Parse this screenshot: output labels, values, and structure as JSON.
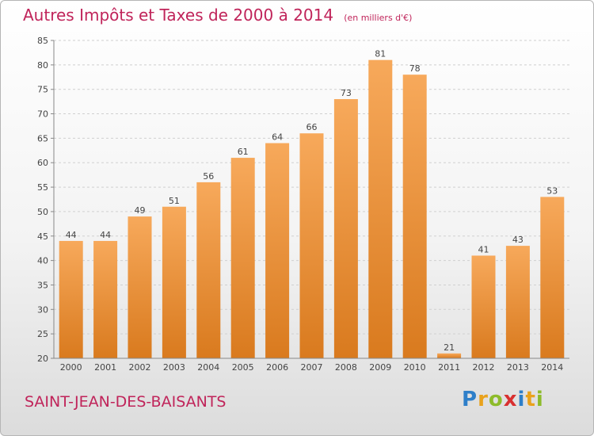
{
  "title": "Autres Impôts et Taxes de 2000 à 2014",
  "subtitle": "(en milliers d'€)",
  "commune": "SAINT-JEAN-DES-BAISANTS",
  "logo": {
    "letters": [
      "P",
      "r",
      "o",
      "x",
      "i",
      "t",
      "i"
    ],
    "colors": [
      "#2e7fc9",
      "#e9a21c",
      "#8dbb2a",
      "#d83030",
      "#2e7fc9",
      "#e9a21c",
      "#8dbb2a"
    ]
  },
  "colors": {
    "bar_light": "#f7a95b",
    "bar_dark": "#d97a1e",
    "accent": "#c0245a"
  },
  "chart_data": {
    "type": "bar",
    "title": "Autres Impôts et Taxes de 2000 à 2014",
    "subtitle": "(en milliers d'€)",
    "categories": [
      "2000",
      "2001",
      "2002",
      "2003",
      "2004",
      "2005",
      "2006",
      "2007",
      "2008",
      "2009",
      "2010",
      "2011",
      "2012",
      "2013",
      "2014"
    ],
    "values": [
      44,
      44,
      49,
      51,
      56,
      61,
      64,
      66,
      73,
      81,
      78,
      21,
      41,
      43,
      53
    ],
    "ylim": [
      20,
      85
    ],
    "yticks": [
      20,
      25,
      30,
      35,
      40,
      45,
      50,
      55,
      60,
      65,
      70,
      75,
      80,
      85
    ],
    "grid": true,
    "xlabel": "",
    "ylabel": ""
  }
}
